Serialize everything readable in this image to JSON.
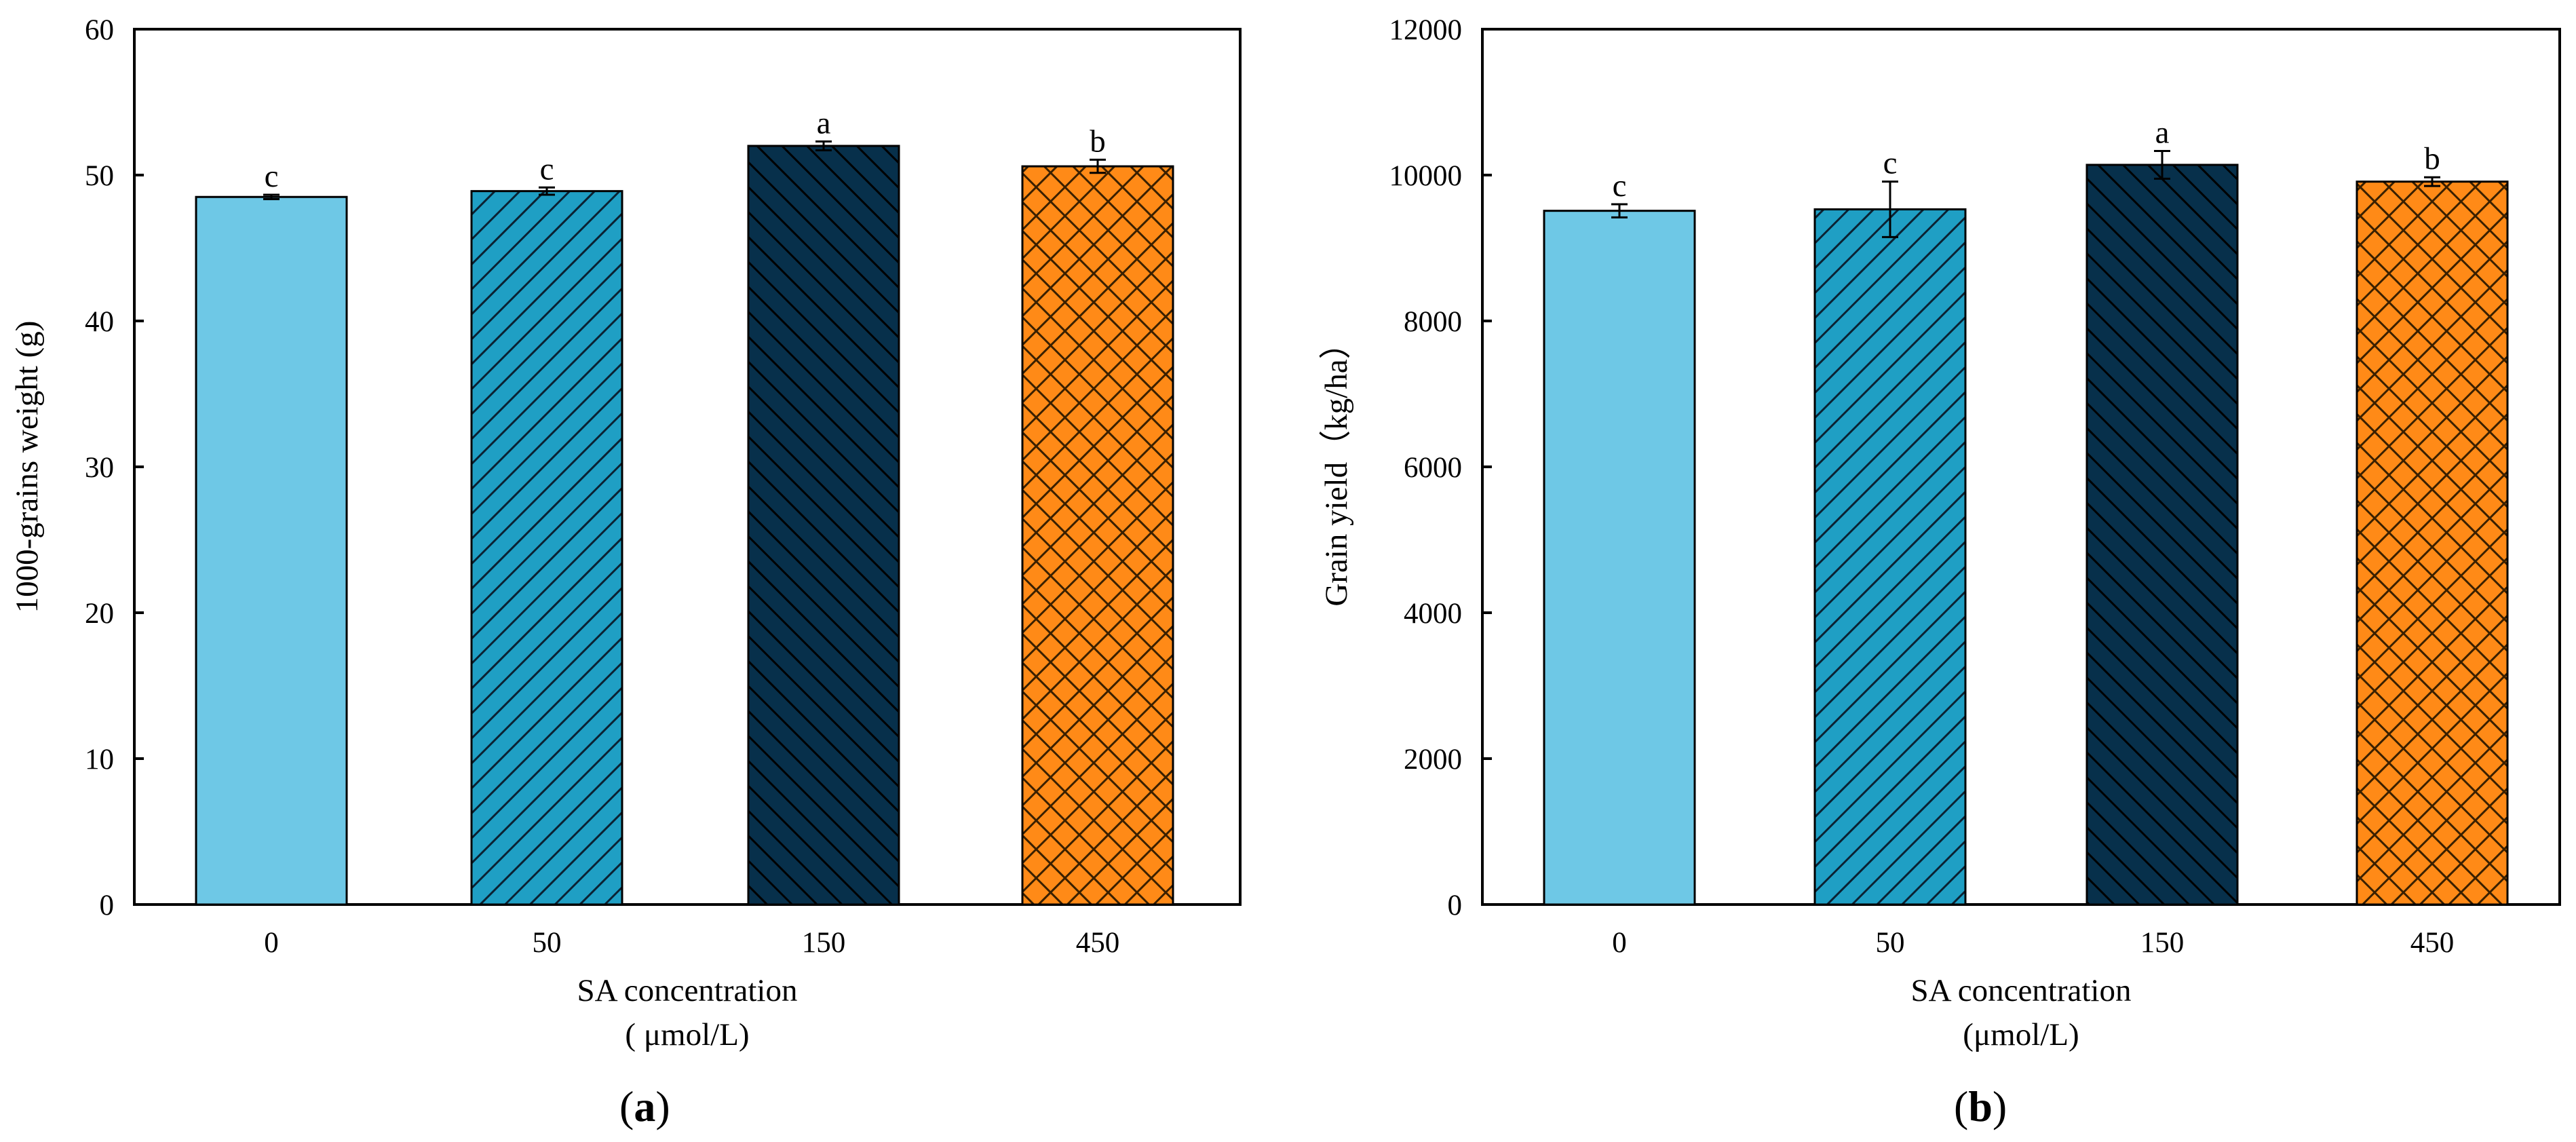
{
  "chart_data": [
    {
      "type": "bar",
      "panel_label": "a",
      "categories": [
        "0",
        "50",
        "150",
        "450"
      ],
      "values": [
        48.5,
        48.9,
        52.0,
        50.6
      ],
      "errors": [
        0.15,
        0.25,
        0.3,
        0.45
      ],
      "significance": [
        "c",
        "c",
        "a",
        "b"
      ],
      "xlabel": "SA concentration",
      "xlabel_unit": "( μmol/L)",
      "ylabel": "1000-grains weight (g)",
      "ylim": [
        0,
        60
      ],
      "yticks": [
        0,
        10,
        20,
        30,
        40,
        50,
        60
      ],
      "ytick_labels": [
        "0",
        "10",
        "20",
        "30",
        "40",
        "50",
        "60"
      ],
      "grid": false,
      "bar_colors": [
        "#6ec8e6",
        "#1f9fc4",
        "#07304b",
        "#ff8a17"
      ],
      "bar_patterns": [
        "solid",
        "diagonal-up",
        "diagonal-down",
        "crosshatch"
      ]
    },
    {
      "type": "bar",
      "panel_label": "b",
      "categories": [
        "0",
        "50",
        "150",
        "450"
      ],
      "values": [
        9510,
        9530,
        10140,
        9910
      ],
      "errors": [
        90,
        380,
        190,
        60
      ],
      "significance": [
        "c",
        "c",
        "a",
        "b"
      ],
      "xlabel": "SA concentration",
      "xlabel_unit": "(μmol/L)",
      "ylabel": "Grain yield（kg/ha）",
      "ylim": [
        0,
        12000
      ],
      "yticks": [
        0,
        2000,
        4000,
        6000,
        8000,
        10000,
        12000
      ],
      "ytick_labels": [
        "0",
        "2000",
        "4000",
        "6000",
        "8000",
        "10000",
        "12000"
      ],
      "grid": false,
      "bar_colors": [
        "#6ec8e6",
        "#1f9fc4",
        "#07304b",
        "#ff8a17"
      ],
      "bar_patterns": [
        "solid",
        "diagonal-up",
        "diagonal-down",
        "crosshatch"
      ]
    }
  ]
}
